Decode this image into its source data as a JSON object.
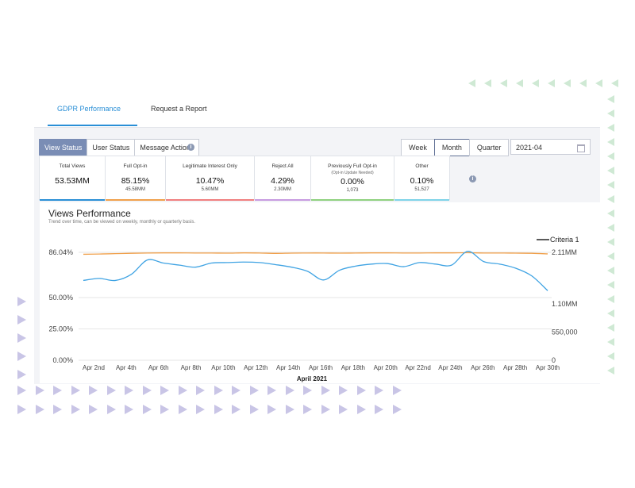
{
  "tabs": [
    {
      "label": "GDPR Performance",
      "active": true
    },
    {
      "label": "Request a Report",
      "active": false
    }
  ],
  "status_tabs": [
    {
      "label": "View Status",
      "active": true
    },
    {
      "label": "User Status",
      "active": false
    },
    {
      "label": "Message Actions",
      "active": false
    }
  ],
  "period_tabs": [
    {
      "label": "Week",
      "active": false
    },
    {
      "label": "Month",
      "active": true
    },
    {
      "label": "Quarter",
      "active": false
    }
  ],
  "date": {
    "value": "2021-04"
  },
  "kpis": [
    {
      "label": "Total Views",
      "sublabel": "",
      "value": "53.53MM",
      "count": "",
      "color": "#2a8fd6"
    },
    {
      "label": "Full Opt-in",
      "sublabel": "",
      "value": "85.15%",
      "count": "45.58MM",
      "color": "#f0a04b"
    },
    {
      "label": "Legitimate Interest Only",
      "sublabel": "",
      "value": "10.47%",
      "count": "5.60MM",
      "color": "#f07f7f"
    },
    {
      "label": "Reject All",
      "sublabel": "",
      "value": "4.29%",
      "count": "2.30MM",
      "color": "#c79be0"
    },
    {
      "label": "Previously Full Opt-in",
      "sublabel": "(Opt-in Update Needed)",
      "value": "0.00%",
      "count": "1,073",
      "color": "#8fd17f"
    },
    {
      "label": "Other",
      "sublabel": "",
      "value": "0.10%",
      "count": "51,527",
      "color": "#7fd3e8"
    }
  ],
  "chart_header": {
    "title": "Views Performance",
    "subtitle": "Trend over time, can be viewed on weekly, monthly or quarterly basis."
  },
  "chart_data": {
    "type": "line",
    "xlabel": "April 2021",
    "x_ticks": [
      "Apr 2nd",
      "Apr 4th",
      "Apr 6th",
      "Apr 8th",
      "Apr 10th",
      "Apr 12th",
      "Apr 14th",
      "Apr 16th",
      "Apr 18th",
      "Apr 20th",
      "Apr 22nd",
      "Apr 24th",
      "Apr 26th",
      "Apr 28th",
      "Apr 30th"
    ],
    "y_left_ticks": [
      "0.00%",
      "25.00%",
      "50.00%",
      "86.04%"
    ],
    "y_left_tick_values": [
      0,
      25,
      50,
      86.04
    ],
    "y_left_range": [
      0,
      86.04
    ],
    "y_right_ticks": [
      "0",
      "550,000",
      "1.10MM",
      "2.11MM"
    ],
    "y_right_tick_values": [
      0,
      550000,
      1100000,
      2110000
    ],
    "y_right_range": [
      0,
      2110000
    ],
    "grid": "horizontal",
    "legend": {
      "position": "top-right",
      "entries": [
        "Criteria 1"
      ]
    },
    "series": [
      {
        "name": "Criteria 1",
        "axis": "left",
        "color": "#f0a04b",
        "x": [
          1,
          2,
          3,
          4,
          5,
          6,
          7,
          8,
          9,
          10,
          11,
          12,
          13,
          14,
          15,
          16,
          17,
          18,
          19,
          20,
          21,
          22,
          23,
          24,
          25,
          26,
          27,
          28,
          29,
          30
        ],
        "values": [
          84.5,
          84.7,
          85.0,
          85.3,
          85.5,
          85.6,
          85.6,
          85.5,
          85.5,
          85.4,
          85.6,
          85.5,
          85.2,
          85.4,
          85.5,
          85.5,
          85.4,
          85.5,
          85.6,
          85.6,
          85.5,
          85.5,
          85.6,
          85.6,
          85.7,
          85.5,
          85.5,
          85.4,
          85.3,
          84.8
        ]
      },
      {
        "name": "",
        "axis": "right",
        "color": "#3fa3e3",
        "x": [
          1,
          2,
          3,
          4,
          5,
          6,
          7,
          8,
          9,
          10,
          11,
          12,
          13,
          14,
          15,
          16,
          17,
          18,
          19,
          20,
          21,
          22,
          23,
          24,
          25,
          26,
          27,
          28,
          29,
          30
        ],
        "values": [
          1560000,
          1600000,
          1560000,
          1680000,
          1960000,
          1900000,
          1860000,
          1820000,
          1900000,
          1910000,
          1920000,
          1910000,
          1870000,
          1820000,
          1740000,
          1570000,
          1760000,
          1840000,
          1880000,
          1890000,
          1830000,
          1910000,
          1880000,
          1860000,
          2130000,
          1930000,
          1880000,
          1800000,
          1650000,
          1360000
        ]
      }
    ]
  }
}
